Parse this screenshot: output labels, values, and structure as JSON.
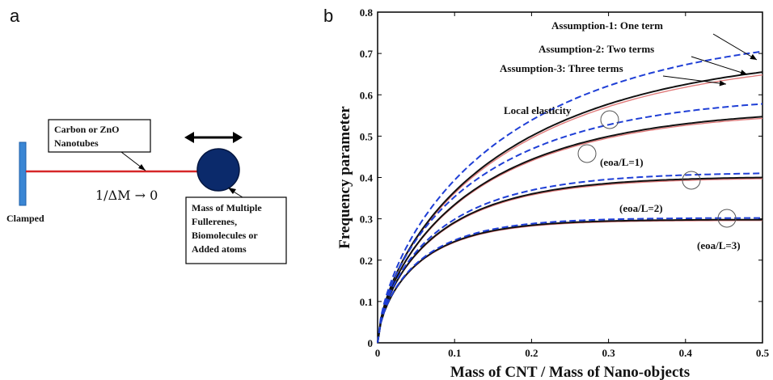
{
  "panel_a": {
    "label": "a",
    "nanotube_label_line1": "Carbon or  ZnO",
    "nanotube_label_line2": "Nanotubes",
    "support_label": "Clamped",
    "formula": "1/ΔM → 0",
    "mass_label_lines": [
      "Mass of Multiple",
      "Fullerenes,",
      "Biomolecules or",
      "Added atoms"
    ],
    "colors": {
      "rod": "#d62728",
      "mass": "#0b2a6b",
      "clamp": "#3a86d4"
    }
  },
  "panel_b": {
    "label": "b"
  },
  "chart_data": {
    "type": "line",
    "xlabel": "Mass of CNT / Mass of Nano-objects",
    "ylabel": "Frequency parameter",
    "xlim": [
      0,
      0.5
    ],
    "ylim": [
      0,
      0.8
    ],
    "xticks": [
      "0",
      "0.1",
      "0.2",
      "0.3",
      "0.4",
      "0.5"
    ],
    "yticks": [
      "0",
      "0.1",
      "0.2",
      "0.3",
      "0.4",
      "0.5",
      "0.6",
      "0.7",
      "0.8"
    ],
    "grid": false,
    "annotations": {
      "assumption1": "Assumption-1: One term",
      "assumption2": "Assumption-2: Two terms",
      "assumption3": "Assumption-3: Three terms",
      "local": "Local elasticity",
      "eoa1": "(eoa/L=1)",
      "eoa2": "(eoa/L=2)",
      "eoa3": "(eoa/L=3)"
    },
    "groups": [
      {
        "case": "Local elasticity",
        "one_term": 0.705,
        "two_terms": 0.655,
        "three_terms": 0.648
      },
      {
        "case": "(eoa/L=1)",
        "one_term": 0.578,
        "two_terms": 0.547,
        "three_terms": 0.543
      },
      {
        "case": "(eoa/L=2)",
        "one_term": 0.41,
        "two_terms": 0.4,
        "three_terms": 0.397
      },
      {
        "case": "(eoa/L=3)",
        "one_term": 0.302,
        "two_terms": 0.298,
        "three_terms": 0.296
      }
    ],
    "colors": {
      "one_term": "#1f3fd6",
      "two_terms": "#111111",
      "three_terms": "#e07a7a"
    }
  }
}
